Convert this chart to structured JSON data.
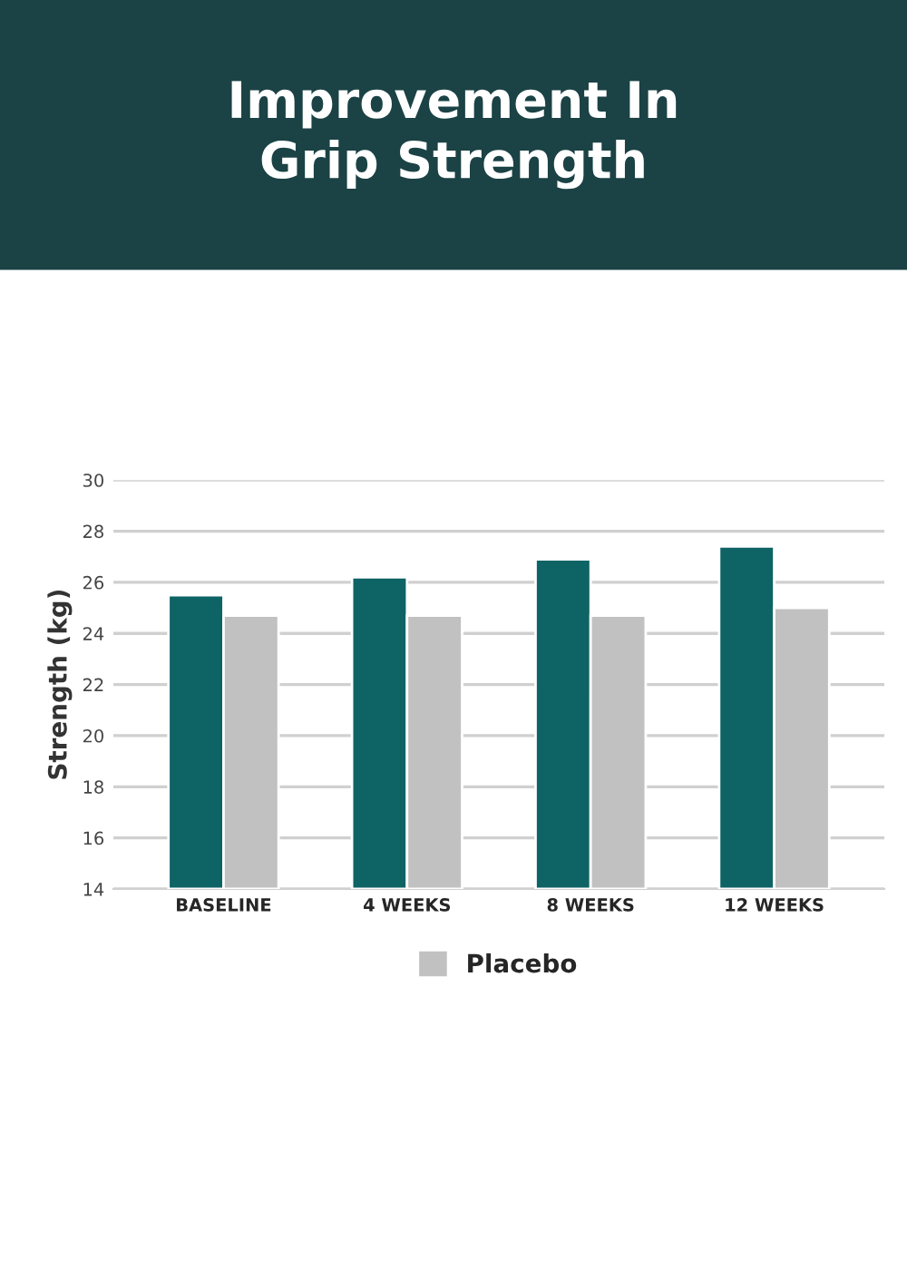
{
  "chart_data": {
    "type": "bar",
    "title": "Improvement In\nGrip Strength",
    "ylabel": "Strength (kg)",
    "categories": [
      "BASELINE",
      "4 WEEKS",
      "8 WEEKS",
      "12 WEEKS"
    ],
    "series": [
      {
        "color": "#0e6365",
        "values": [
          25.5,
          26.2,
          26.9,
          27.4
        ]
      },
      {
        "name": "Placebo",
        "color": "#c2c1c2",
        "values": [
          24.7,
          24.7,
          24.7,
          25.0
        ]
      }
    ],
    "ylim": [
      14,
      30
    ],
    "yticks": [
      14,
      16,
      18,
      20,
      22,
      24,
      26,
      28,
      30
    ],
    "grid": "y",
    "legend": "bottom"
  }
}
